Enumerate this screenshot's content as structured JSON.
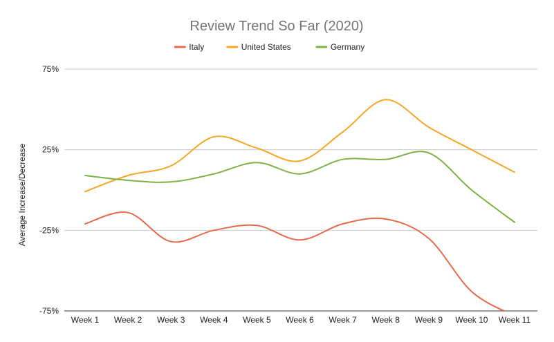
{
  "chart_data": {
    "type": "line",
    "title": "Review Trend So Far (2020)",
    "xlabel": "",
    "ylabel": "Average Increase/Decrease",
    "categories": [
      "Week 1",
      "Week 2",
      "Week 3",
      "Week 4",
      "Week 5",
      "Week 6",
      "Week 7",
      "Week 8",
      "Week 9",
      "Week 10",
      "Week 11"
    ],
    "y_ticks": [
      "75%",
      "25%",
      "-25%",
      "-75%"
    ],
    "y_tick_values": [
      75,
      25,
      -25,
      -75
    ],
    "ylim": [
      -75,
      75
    ],
    "grid": true,
    "legend_position": "top",
    "smooth": true,
    "series": [
      {
        "name": "Italy",
        "color": "#e8684a",
        "values": [
          -21,
          -14,
          -32,
          -25,
          -22,
          -31,
          -21,
          -18,
          -30,
          -63,
          -78
        ]
      },
      {
        "name": "United States",
        "color": "#f6a623",
        "values": [
          -1,
          9,
          15,
          33,
          26,
          18,
          36,
          56,
          39,
          25,
          11
        ]
      },
      {
        "name": "Germany",
        "color": "#7cb342",
        "values": [
          9,
          6,
          5,
          10,
          17,
          10,
          19,
          19,
          23,
          0,
          -20
        ]
      }
    ]
  }
}
